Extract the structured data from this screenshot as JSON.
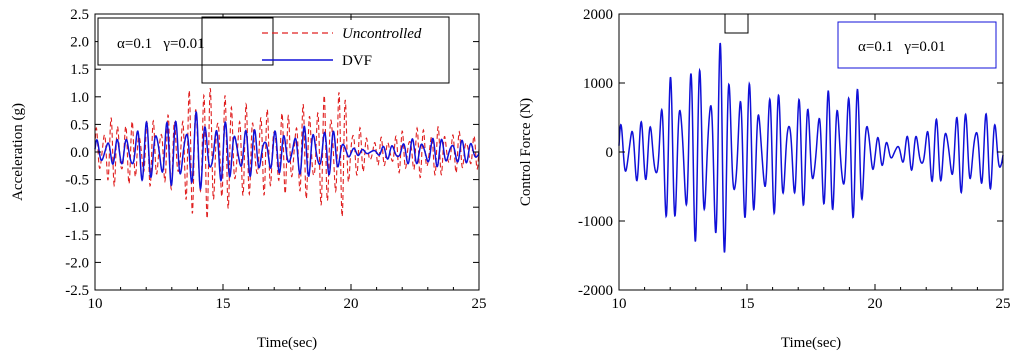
{
  "chart_data": [
    {
      "type": "line",
      "xlabel": "Time(sec)",
      "ylabel": "Acceleration (g)",
      "xlim": [
        10,
        25
      ],
      "ylim": [
        -2.5,
        2.5
      ],
      "x_ticks": [
        10,
        15,
        20,
        25
      ],
      "x_tick_labels": [
        "10",
        "15",
        "20",
        "25"
      ],
      "y_ticks": [
        -2.5,
        -2.0,
        -1.5,
        -1.0,
        -0.5,
        0.0,
        0.5,
        1.0,
        1.5,
        2.0,
        2.5
      ],
      "y_tick_labels": [
        "-2.5",
        "-2.0",
        "-1.5",
        "-1.0",
        "-0.5",
        "0.0",
        "0.5",
        "1.0",
        "1.5",
        "2.0",
        "2.5"
      ],
      "grid": false,
      "param_box": "α=0.1   γ=0.01",
      "legend": [
        {
          "label": "Uncontrolled",
          "color": "#e02020",
          "dash": true,
          "italic": true
        },
        {
          "label": "DVF",
          "color": "#1010d8",
          "dash": false,
          "italic": false
        }
      ],
      "series": [
        {
          "name": "Uncontrolled",
          "color": "#e02020",
          "dashed": true,
          "x": [
            10.0,
            10.5,
            11.0,
            11.5,
            12.0,
            12.5,
            13.0,
            13.5,
            13.8,
            14.0,
            14.3,
            14.6,
            15.0,
            15.5,
            16.0,
            16.5,
            17.0,
            17.5,
            18.0,
            18.5,
            19.0,
            19.5,
            19.7,
            20.0,
            20.5,
            21.0,
            21.5,
            22.0,
            22.5,
            23.0,
            23.5,
            24.0,
            24.5,
            25.0
          ],
          "amplitude": [
            0.5,
            0.6,
            0.7,
            0.55,
            0.6,
            0.65,
            0.7,
            0.85,
            1.3,
            1.4,
            1.2,
            1.25,
            1.1,
            0.95,
            0.85,
            0.8,
            0.8,
            0.75,
            0.85,
            0.95,
            1.05,
            1.25,
            1.15,
            0.7,
            0.35,
            0.25,
            0.3,
            0.4,
            0.45,
            0.5,
            0.45,
            0.4,
            0.35,
            0.3
          ],
          "frequency_hz": 3.6
        },
        {
          "name": "DVF",
          "color": "#1010d8",
          "dashed": false,
          "x": [
            10.0,
            10.5,
            11.0,
            11.5,
            12.0,
            12.5,
            13.0,
            13.5,
            13.8,
            14.0,
            14.3,
            14.6,
            15.0,
            15.5,
            16.0,
            16.5,
            17.0,
            17.5,
            18.0,
            18.5,
            19.0,
            19.5,
            19.7,
            20.0,
            20.5,
            21.0,
            21.5,
            22.0,
            22.5,
            23.0,
            23.5,
            24.0,
            24.5,
            25.0
          ],
          "amplitude": [
            0.25,
            0.3,
            0.2,
            0.5,
            0.55,
            0.6,
            0.6,
            0.65,
            0.7,
            0.75,
            0.6,
            0.6,
            0.55,
            0.5,
            0.45,
            0.4,
            0.4,
            0.35,
            0.45,
            0.5,
            0.45,
            0.35,
            0.3,
            0.08,
            0.05,
            0.05,
            0.15,
            0.2,
            0.25,
            0.3,
            0.25,
            0.25,
            0.2,
            0.2
          ],
          "frequency_hz": 2.6
        }
      ]
    },
    {
      "type": "line",
      "xlabel": "Time(sec)",
      "ylabel": "Control Force (N)",
      "xlim": [
        10,
        25
      ],
      "ylim": [
        -2000,
        2000
      ],
      "x_ticks": [
        10,
        15,
        20,
        25
      ],
      "x_tick_labels": [
        "10",
        "15",
        "20",
        "25"
      ],
      "y_ticks": [
        -2000,
        -1000,
        0,
        1000,
        2000
      ],
      "y_tick_labels": [
        "-2000",
        "-1000",
        "0",
        "1000",
        "2000"
      ],
      "grid": false,
      "param_box": "α=0.1   γ=0.01",
      "series": [
        {
          "color": "#1010d8",
          "dashed": false,
          "x": [
            10.0,
            10.5,
            11.0,
            11.5,
            12.0,
            12.5,
            13.0,
            13.5,
            13.8,
            14.0,
            14.3,
            14.6,
            15.0,
            15.5,
            16.0,
            16.5,
            17.0,
            17.5,
            18.0,
            18.5,
            19.0,
            19.5,
            19.7,
            20.0,
            20.5,
            21.0,
            21.5,
            22.0,
            22.5,
            23.0,
            23.5,
            24.0,
            24.5,
            25.0
          ],
          "amplitude": [
            450,
            550,
            400,
            700,
            1100,
            1250,
            1300,
            1350,
            1500,
            1650,
            1300,
            1150,
            1000,
            950,
            900,
            850,
            800,
            750,
            850,
            950,
            1000,
            900,
            800,
            250,
            150,
            150,
            300,
            400,
            500,
            550,
            600,
            600,
            550,
            450
          ],
          "frequency_hz": 2.6
        }
      ]
    }
  ]
}
